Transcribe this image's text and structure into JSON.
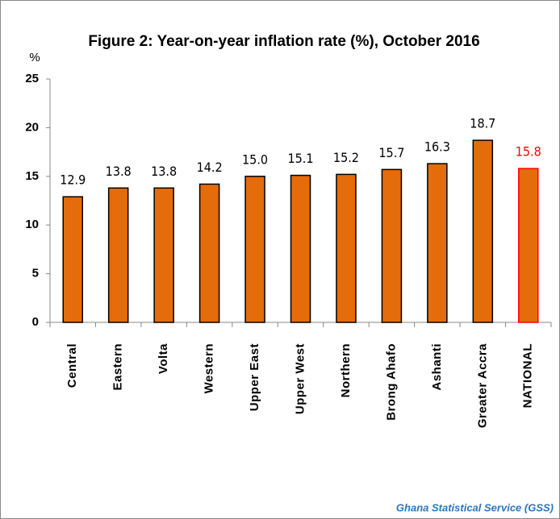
{
  "chart_data": {
    "type": "bar",
    "title": "Figure 2: Year-on-year inflation rate (%),  October 2016",
    "y_label": "%",
    "source": "Ghana Statistical Service (GSS)",
    "categories": [
      "Central",
      "Eastern",
      "Volta",
      "Western",
      "Upper East",
      "Upper West",
      "Northern",
      "Brong Ahafo",
      "Ashanti",
      "Greater Accra",
      "NATIONAL"
    ],
    "values": [
      12.9,
      13.8,
      13.8,
      14.2,
      15.0,
      15.1,
      15.2,
      15.7,
      16.3,
      18.7,
      15.8
    ],
    "value_labels": [
      "12.9",
      "13.8",
      "13.8",
      "14.2",
      "15.0",
      "15.1",
      "15.2",
      "15.7",
      "16.3",
      "18.7",
      "15.8"
    ],
    "colors": [
      "#e46c0a",
      "#e46c0a",
      "#e46c0a",
      "#e46c0a",
      "#e46c0a",
      "#e46c0a",
      "#e46c0a",
      "#e46c0a",
      "#e46c0a",
      "#e46c0a",
      "#e46c0a"
    ],
    "edge_colors": [
      "#000000",
      "#000000",
      "#000000",
      "#000000",
      "#000000",
      "#000000",
      "#000000",
      "#000000",
      "#000000",
      "#000000",
      "#ff0000"
    ],
    "label_colors": [
      "#000000",
      "#000000",
      "#000000",
      "#000000",
      "#000000",
      "#000000",
      "#000000",
      "#000000",
      "#000000",
      "#000000",
      "#ff0000"
    ],
    "ylim": [
      0,
      25
    ],
    "yticks": [
      0,
      5,
      10,
      15,
      20,
      25
    ],
    "grid": false
  }
}
